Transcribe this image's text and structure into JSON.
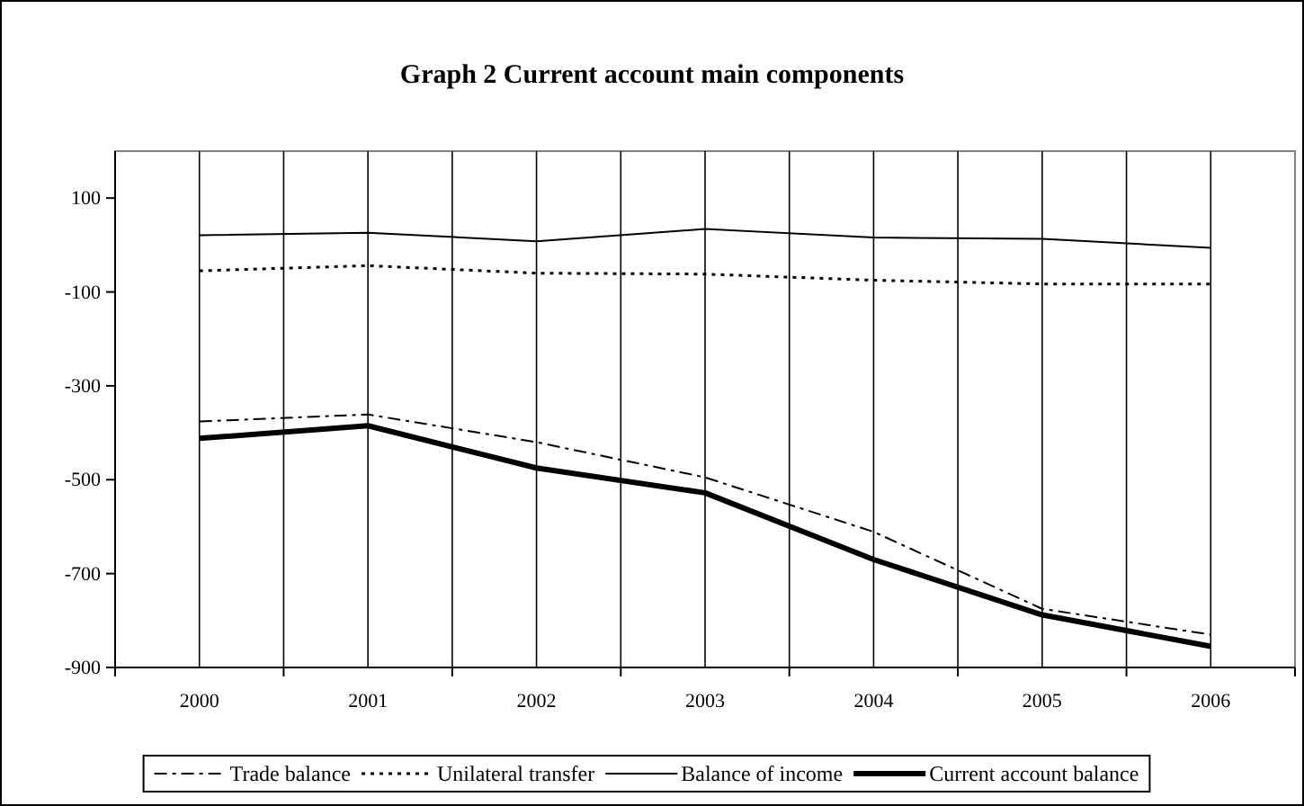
{
  "chart_data": {
    "type": "line",
    "title": "Graph 2 Current account main components",
    "categories": [
      "2000",
      "2001",
      "2002",
      "2003",
      "2004",
      "2005",
      "2006"
    ],
    "series": [
      {
        "name": "Trade balance",
        "color": "#000000",
        "line_style": "dashdot",
        "values": [
          -376,
          -361,
          -420,
          -495,
          -611,
          -775,
          -830
        ]
      },
      {
        "name": "Unilateral transfer",
        "color": "#000000",
        "line_style": "dotted",
        "values": [
          -55,
          -44,
          -60,
          -62,
          -75,
          -83,
          -83
        ]
      },
      {
        "name": "Balance of income",
        "color": "#000000",
        "line_style": "solid",
        "values": [
          21,
          26,
          8,
          34,
          16,
          13,
          -6
        ]
      },
      {
        "name": "Current account balance",
        "color": "#000000",
        "line_style": "solid",
        "values": [
          -412,
          -385,
          -475,
          -528,
          -670,
          -788,
          -855
        ]
      }
    ],
    "ylim": [
      -900,
      200
    ],
    "yticks": [
      -900,
      -700,
      -500,
      -300,
      -100,
      100
    ],
    "grid": "x",
    "legend": "bottom",
    "marker": "none"
  }
}
